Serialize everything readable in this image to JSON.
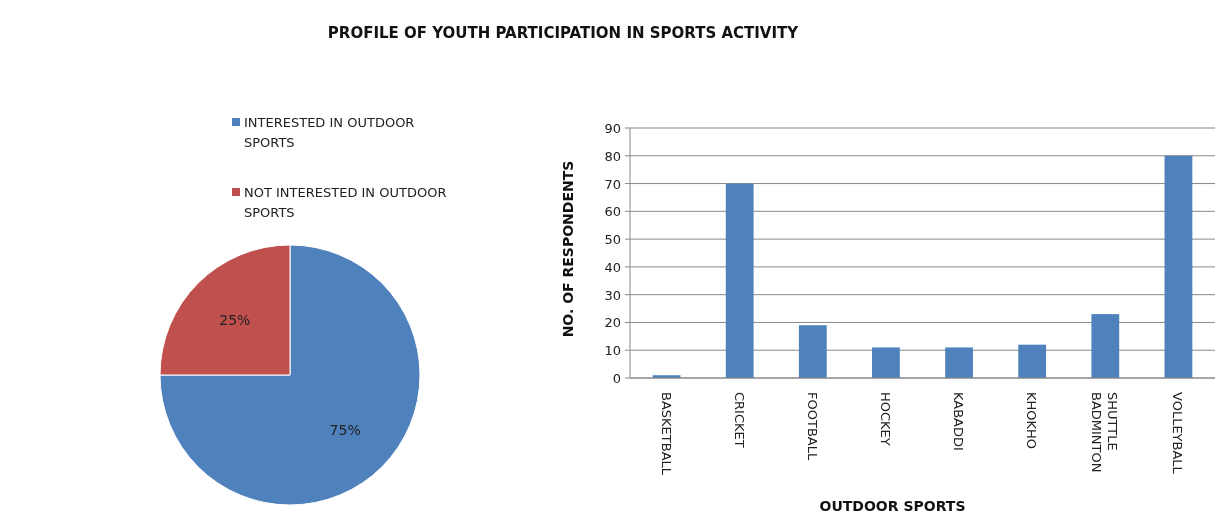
{
  "chart_data": [
    {
      "type": "pie",
      "title": "PROFILE OF YOUTH PARTICIPATION IN SPORTS ACTIVITY",
      "categories": [
        "INTERESTED IN OUTDOOR SPORTS",
        "NOT INTERESTED IN OUTDOOR SPORTS"
      ],
      "values": [
        75,
        25
      ],
      "colors": [
        "#4f81bd",
        "#c0504d"
      ],
      "value_labels": [
        "75%",
        "25%"
      ],
      "legend": "top"
    },
    {
      "type": "bar",
      "categories": [
        "BASKETBALL",
        "CRICKET",
        "FOOTBALL",
        "HOCKEY",
        "KABADDI",
        "KHOKHO",
        "SHUTTLE BADMINTON",
        "VOLLEYBALL"
      ],
      "values": [
        1,
        70,
        19,
        11,
        11,
        12,
        23,
        80
      ],
      "color": "#4f81bd",
      "ylim": [
        0,
        90
      ],
      "yticks": [
        0,
        10,
        20,
        30,
        40,
        50,
        60,
        70,
        80,
        90
      ],
      "grid": "y",
      "xlabel": "OUTDOOR SPORTS",
      "ylabel": "NO. OF RESPONDENTS"
    }
  ]
}
